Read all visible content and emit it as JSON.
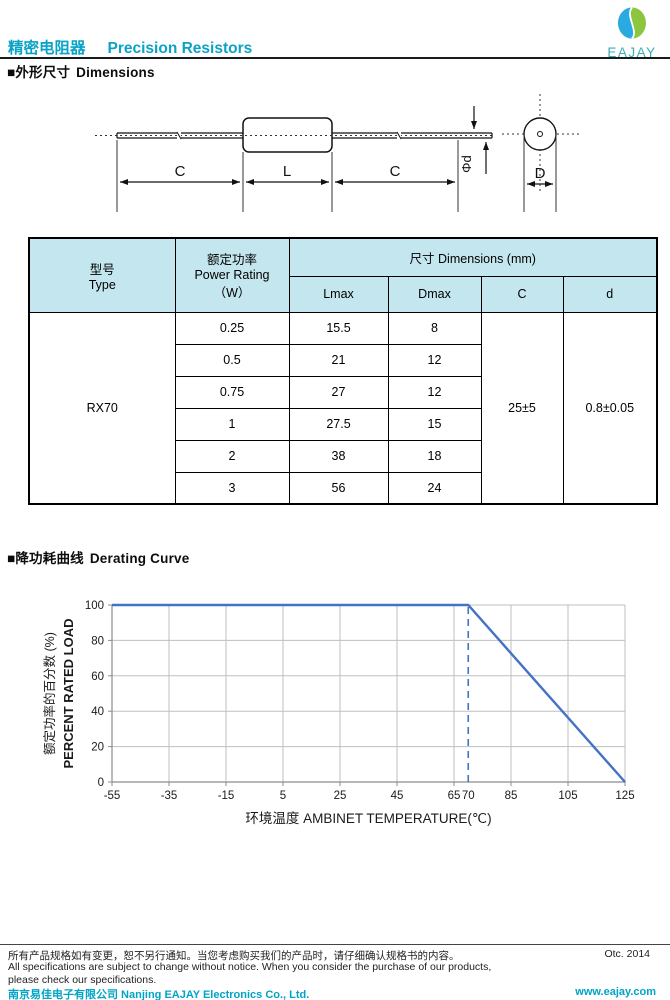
{
  "header": {
    "title_cn": "精密电阻器",
    "title_en": "Precision Resistors",
    "logo_text": "EAJAY",
    "accent_cyan": "#0AA3C6",
    "logo_blue": "#29ABE2",
    "logo_green": "#8CC63F"
  },
  "sections": {
    "dimensions_cn": "■外形尺寸",
    "dimensions_en": "Dimensions",
    "derating_cn": "■降功耗曲线",
    "derating_en": "Derating Curve"
  },
  "drawing": {
    "dim_c_left": "C",
    "dim_l": "L",
    "dim_c_right": "C",
    "dim_phi_d": "Φd",
    "dim_d": "D"
  },
  "table": {
    "header": {
      "type_cn": "型号",
      "type_en": "Type",
      "power_cn": "额定功率",
      "power_en": "Power Rating",
      "power_unit": "（W）",
      "dims_group": "尺寸 Dimensions (mm)",
      "col_lmax": "Lmax",
      "col_dmax": "Dmax",
      "col_c": "C",
      "col_d": "d"
    },
    "type_value": "RX70",
    "rows": [
      {
        "power": "0.25",
        "lmax": "15.5",
        "dmax": "8"
      },
      {
        "power": "0.5",
        "lmax": "21",
        "dmax": "12"
      },
      {
        "power": "0.75",
        "lmax": "27",
        "dmax": "12"
      },
      {
        "power": "1",
        "lmax": "27.5",
        "dmax": "15"
      },
      {
        "power": "2",
        "lmax": "38",
        "dmax": "18"
      },
      {
        "power": "3",
        "lmax": "56",
        "dmax": "24"
      }
    ],
    "c_value": "25±5",
    "d_value": "0.8±0.05",
    "header_bg": "#C4E6EF"
  },
  "chart_data": {
    "type": "line",
    "title": "",
    "series": [
      {
        "name": "derating-curve",
        "points": [
          [
            -55,
            100
          ],
          [
            70,
            100
          ],
          [
            125,
            0
          ]
        ]
      }
    ],
    "dashed_guide": {
      "x": 70,
      "y_from": 0,
      "y_to": 100
    },
    "xticks": [
      -55,
      -35,
      -15,
      5,
      25,
      45,
      65,
      70,
      85,
      105,
      125
    ],
    "grid_xticks": [
      -55,
      -35,
      -15,
      5,
      25,
      45,
      65,
      85,
      105,
      125
    ],
    "yticks": [
      0,
      20,
      40,
      60,
      80,
      100
    ],
    "xlim": [
      -55,
      125
    ],
    "ylim": [
      0,
      100
    ],
    "xlabel": "环境温度  AMBINET TEMPERATURE(℃)",
    "ylabel_cn": "额定功率的百分数 (%)",
    "ylabel_en": "PERCENT RATED LOAD",
    "grid": true,
    "legend": "none",
    "line_color": "#4472C4",
    "grid_color": "#BFBFBF",
    "axis_color": "#8C8C8C",
    "text_color": "#1A1A1A"
  },
  "footer": {
    "note_cn": "所有产品规格如有变更，恕不另行通知。当您考虑购买我们的产品时，请仔细确认规格书的内容。",
    "date": "Otc. 2014",
    "note_en1": "All specifications are subject to change without notice. When you consider the purchase of our products,",
    "note_en2": "please check our specifications.",
    "company": "南京易佳电子有限公司  Nanjing EAJAY Electronics Co., Ltd.",
    "website": "www.eajay.com"
  }
}
